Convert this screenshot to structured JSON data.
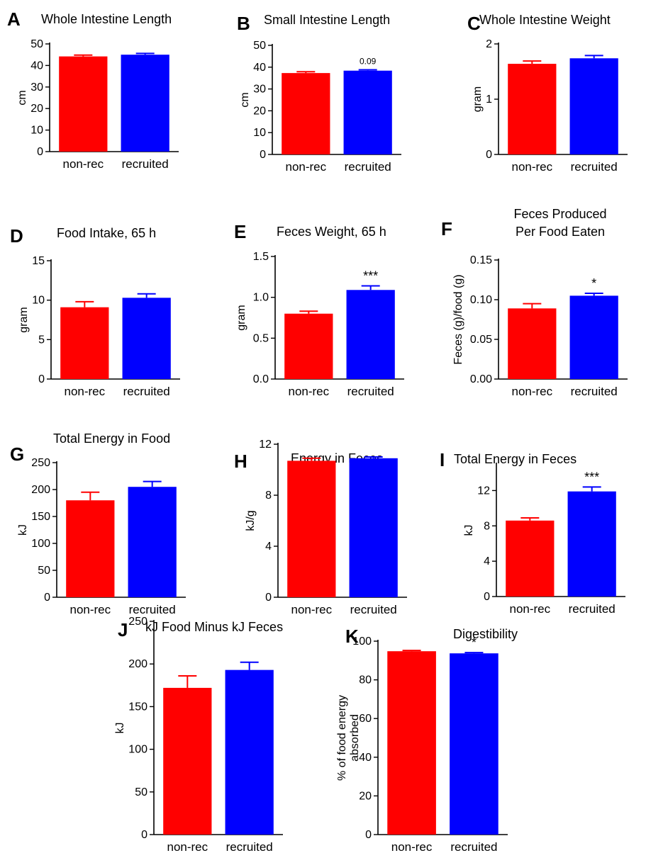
{
  "colors": {
    "non_rec": "#ff0000",
    "recruited": "#0000ff",
    "axis": "#000000"
  },
  "chart_data": [
    {
      "panel": "A",
      "type": "bar",
      "title": "Whole Intestine Length",
      "ylabel": "cm",
      "categories": [
        "non-rec",
        "recruited"
      ],
      "values": [
        44.2,
        45.0
      ],
      "errors": [
        0.6,
        0.6
      ],
      "ylim": [
        0,
        50
      ],
      "yticks": [
        "0",
        "10",
        "20",
        "30",
        "40",
        "50"
      ],
      "annotations": [
        "",
        ""
      ]
    },
    {
      "panel": "B",
      "type": "bar",
      "title": "Small Intestine Length",
      "ylabel": "cm",
      "categories": [
        "non-rec",
        "recruited"
      ],
      "values": [
        37.3,
        38.4
      ],
      "errors": [
        0.6,
        0.4
      ],
      "ylim": [
        0,
        50
      ],
      "yticks": [
        "0",
        "10",
        "20",
        "30",
        "40",
        "50"
      ],
      "annotations": [
        "",
        "0.09"
      ]
    },
    {
      "panel": "C",
      "type": "bar",
      "title": "Whole Intestine Weight",
      "ylabel": "gram",
      "categories": [
        "non-rec",
        "recruited"
      ],
      "values": [
        1.64,
        1.74
      ],
      "errors": [
        0.05,
        0.05
      ],
      "ylim": [
        0,
        2
      ],
      "yticks": [
        "0",
        "1",
        "2"
      ],
      "annotations": [
        "",
        ""
      ]
    },
    {
      "panel": "D",
      "type": "bar",
      "title": "Food Intake, 65 h",
      "ylabel": "gram",
      "categories": [
        "non-rec",
        "recruited"
      ],
      "values": [
        9.1,
        10.3
      ],
      "errors": [
        0.7,
        0.5
      ],
      "ylim": [
        0,
        15
      ],
      "yticks": [
        "0",
        "5",
        "10",
        "15"
      ],
      "annotations": [
        "",
        ""
      ]
    },
    {
      "panel": "E",
      "type": "bar",
      "title": "Feces Weight, 65 h",
      "ylabel": "gram",
      "categories": [
        "non-rec",
        "recruited"
      ],
      "values": [
        0.8,
        1.09
      ],
      "errors": [
        0.03,
        0.05
      ],
      "ylim": [
        0,
        1.5
      ],
      "yticks": [
        "0.0",
        "0.5",
        "1.0",
        "1.5"
      ],
      "annotations": [
        "",
        "***"
      ]
    },
    {
      "panel": "F",
      "type": "bar",
      "title": "Feces Produced",
      "subtitle": "Per Food Eaten",
      "ylabel": "Feces (g)/food (g)",
      "categories": [
        "non-rec",
        "recruited"
      ],
      "values": [
        0.089,
        0.105
      ],
      "errors": [
        0.006,
        0.003
      ],
      "ylim": [
        0,
        0.15
      ],
      "yticks": [
        "0.00",
        "0.05",
        "0.10",
        "0.15"
      ],
      "annotations": [
        "",
        "*"
      ]
    },
    {
      "panel": "G",
      "type": "bar",
      "title": "Total Energy in Food",
      "ylabel": "kJ",
      "categories": [
        "non-rec",
        "recruited"
      ],
      "values": [
        180,
        205
      ],
      "errors": [
        15,
        10
      ],
      "ylim": [
        0,
        250
      ],
      "yticks": [
        "0",
        "50",
        "100",
        "150",
        "200",
        "250"
      ],
      "annotations": [
        "",
        ""
      ]
    },
    {
      "panel": "H",
      "type": "bar",
      "title": "Energy in Feces",
      "ylabel": "kJ/g",
      "categories": [
        "non-rec",
        "recruited"
      ],
      "values": [
        10.7,
        10.9
      ],
      "errors": [
        0.2,
        0.1
      ],
      "ylim": [
        0,
        12
      ],
      "yticks": [
        "0",
        "4",
        "8",
        "12"
      ],
      "annotations": [
        "",
        ""
      ]
    },
    {
      "panel": "I",
      "type": "bar",
      "title": "Total Energy in Feces",
      "ylabel": "kJ",
      "categories": [
        "non-rec",
        "recruited"
      ],
      "values": [
        8.6,
        11.9
      ],
      "errors": [
        0.3,
        0.5
      ],
      "ylim": [
        0,
        15
      ],
      "yticks": [
        "0",
        "4",
        "8",
        "12"
      ],
      "annotations": [
        "",
        "***"
      ]
    },
    {
      "panel": "J",
      "type": "bar",
      "title": "kJ Food Minus kJ Feces",
      "ylabel": "kJ",
      "categories": [
        "non-rec",
        "recruited"
      ],
      "values": [
        172,
        193
      ],
      "errors": [
        14,
        9
      ],
      "ylim": [
        0,
        250
      ],
      "yticks": [
        "0",
        "50",
        "100",
        "150",
        "200",
        "250"
      ],
      "annotations": [
        "",
        ""
      ]
    },
    {
      "panel": "K",
      "type": "bar",
      "title": "Digestibility",
      "ylabel": "% of food energy",
      "ylabel2": "absorbed",
      "categories": [
        "non-rec",
        "recruited"
      ],
      "values": [
        94.8,
        93.7
      ],
      "errors": [
        0.4,
        0.4
      ],
      "ylim": [
        0,
        100
      ],
      "yticks": [
        "0",
        "20",
        "40",
        "60",
        "80",
        "100"
      ],
      "annotations": [
        "",
        "*"
      ]
    }
  ]
}
